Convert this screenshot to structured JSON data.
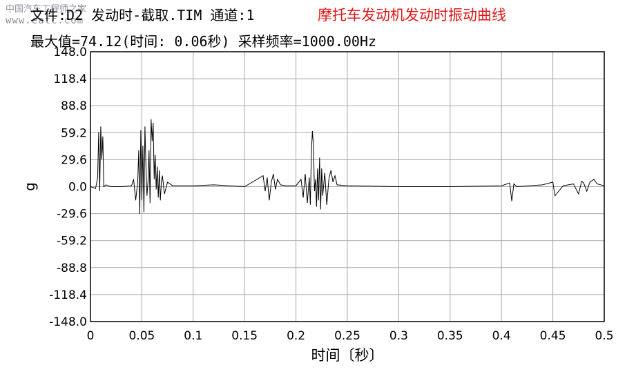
{
  "header": {
    "line1": "文件:D2 发动时-截取.TIM 通道:1",
    "line2": "最大值=74.12(时间: 0.06秒) 采样频率=1000.00Hz"
  },
  "watermark": {
    "line1": "中国汽车工程师之家",
    "line2": "www.eatc.com"
  },
  "chart_data": {
    "type": "line",
    "title": "摩托车发动机发动时振动曲线",
    "xlabel": "时间〔秒〕",
    "ylabel": "g",
    "xlim": [
      0,
      0.5
    ],
    "ylim": [
      -148.0,
      148.0
    ],
    "grid": true,
    "xticks": [
      0,
      0.05,
      0.1,
      0.15,
      0.2,
      0.25,
      0.3,
      0.35,
      0.4,
      0.45,
      0.5
    ],
    "xtick_labels": [
      "0",
      "0.05",
      "0.1",
      "0.15",
      "0.2",
      "0.25",
      "0.3",
      "0.35",
      "0.4",
      "0.45",
      "0.5"
    ],
    "yticks": [
      148.0,
      118.4,
      88.8,
      59.2,
      29.6,
      0.0,
      -29.6,
      -59.2,
      -88.8,
      -118.4,
      -148.0
    ],
    "ytick_labels": [
      "148.0",
      "118.4",
      "88.8",
      "59.2",
      "29.6",
      "0.0",
      "-29.6",
      "-59.2",
      "-88.8",
      "-118.4",
      "-148.0"
    ],
    "series": [
      {
        "color": "#000000",
        "x": [
          0,
          0.005,
          0.007,
          0.008,
          0.009,
          0.01,
          0.011,
          0.012,
          0.013,
          0.015,
          0.02,
          0.03,
          0.04,
          0.042,
          0.044,
          0.046,
          0.047,
          0.048,
          0.049,
          0.05,
          0.051,
          0.052,
          0.053,
          0.054,
          0.055,
          0.056,
          0.057,
          0.058,
          0.059,
          0.06,
          0.061,
          0.062,
          0.063,
          0.064,
          0.065,
          0.066,
          0.067,
          0.068,
          0.069,
          0.07,
          0.072,
          0.075,
          0.08,
          0.1,
          0.12,
          0.15,
          0.168,
          0.17,
          0.172,
          0.174,
          0.176,
          0.178,
          0.18,
          0.182,
          0.185,
          0.19,
          0.2,
          0.205,
          0.207,
          0.209,
          0.211,
          0.213,
          0.214,
          0.215,
          0.216,
          0.217,
          0.218,
          0.219,
          0.22,
          0.221,
          0.222,
          0.223,
          0.224,
          0.225,
          0.226,
          0.228,
          0.23,
          0.232,
          0.234,
          0.236,
          0.238,
          0.24,
          0.25,
          0.3,
          0.35,
          0.4,
          0.408,
          0.41,
          0.412,
          0.415,
          0.44,
          0.45,
          0.452,
          0.46,
          0.47,
          0.475,
          0.478,
          0.48,
          0.483,
          0.486,
          0.49,
          0.493,
          0.5
        ],
        "y": [
          0,
          -2,
          10,
          60,
          -5,
          66,
          30,
          55,
          0,
          2,
          0,
          0,
          1,
          8,
          -15,
          5,
          40,
          -30,
          62,
          -15,
          45,
          -28,
          66,
          20,
          -10,
          5,
          40,
          -18,
          74,
          50,
          70,
          8,
          35,
          -3,
          22,
          -12,
          18,
          -15,
          5,
          12,
          -8,
          5,
          1,
          1,
          2,
          0,
          12,
          -5,
          10,
          -15,
          5,
          14,
          -3,
          8,
          2,
          1,
          1,
          8,
          -12,
          14,
          -18,
          10,
          -20,
          38,
          61,
          45,
          -5,
          8,
          -22,
          20,
          -15,
          32,
          -25,
          20,
          -10,
          15,
          -20,
          8,
          18,
          5,
          12,
          2,
          1,
          0,
          0,
          1,
          4,
          -16,
          3,
          0,
          2,
          5,
          -10,
          1,
          3,
          -8,
          6,
          4,
          -5,
          5,
          8,
          3,
          1
        ]
      }
    ]
  }
}
